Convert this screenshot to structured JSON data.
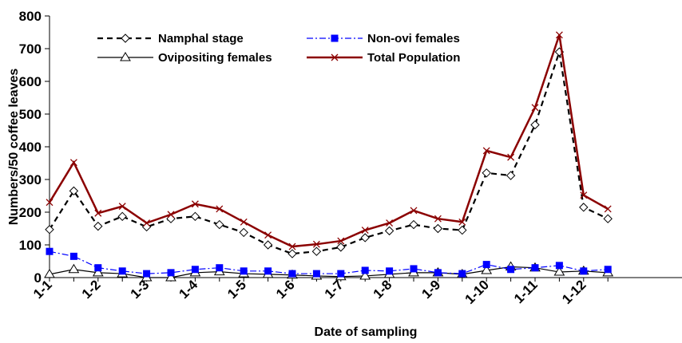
{
  "chart_data": {
    "type": "line",
    "title": "",
    "xlabel": "Date of sampling",
    "ylabel": "Numbers/50 coffee leaves",
    "ylim": [
      0,
      800
    ],
    "yticks": [
      0,
      100,
      200,
      300,
      400,
      500,
      600,
      700,
      800
    ],
    "x_tick_labels": [
      "1-1",
      "1-2",
      "1-3",
      "1-4",
      "1-5",
      "1-6",
      "1-7",
      "1-8",
      "1-9",
      "1-10",
      "1-11",
      "1-12"
    ],
    "grid": false,
    "legend_position": "top",
    "series": [
      {
        "name": "Namphal stage",
        "color": "#000000",
        "line": "dashed",
        "marker": "diamond-open",
        "values": [
          147,
          265,
          157,
          187,
          155,
          180,
          187,
          162,
          138,
          100,
          73,
          80,
          93,
          122,
          143,
          162,
          150,
          145,
          320,
          312,
          467,
          690,
          215,
          180
        ]
      },
      {
        "name": "Non-ovi females",
        "color": "#0000ff",
        "line": "dashdot",
        "marker": "square-filled",
        "values": [
          80,
          65,
          30,
          20,
          12,
          15,
          25,
          30,
          20,
          20,
          12,
          12,
          12,
          22,
          20,
          27,
          15,
          12,
          40,
          25,
          30,
          37,
          20,
          25
        ]
      },
      {
        "name": "Ovipositing females",
        "color": "#000000",
        "line": "solid",
        "marker": "triangle-open",
        "values": [
          10,
          25,
          15,
          12,
          0,
          0,
          15,
          18,
          12,
          10,
          8,
          5,
          3,
          5,
          10,
          15,
          15,
          10,
          22,
          33,
          30,
          17,
          20,
          15
        ]
      },
      {
        "name": "Total Population",
        "color": "#8b0000",
        "line": "solid",
        "marker": "x",
        "values": [
          230,
          352,
          197,
          218,
          167,
          193,
          225,
          210,
          170,
          130,
          95,
          102,
          112,
          145,
          167,
          205,
          180,
          170,
          388,
          368,
          520,
          742,
          252,
          210
        ]
      }
    ]
  }
}
